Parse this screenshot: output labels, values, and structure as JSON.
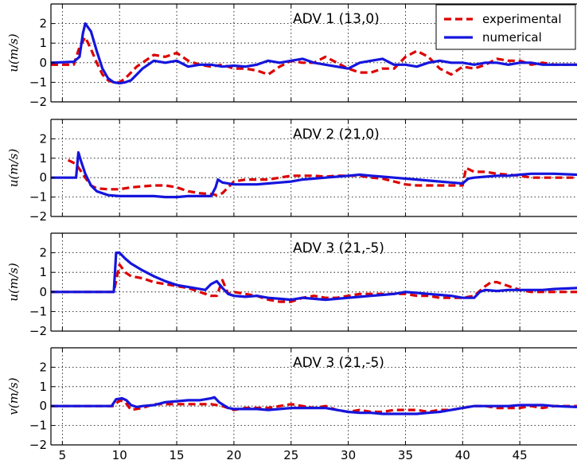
{
  "chart_data": [
    {
      "type": "line",
      "title": "ADV 1  (13,0)",
      "ylabel": "u(m/s)",
      "xlim": [
        4,
        50
      ],
      "ylim": [
        -2,
        3
      ],
      "xticks": [
        5,
        10,
        15,
        20,
        25,
        30,
        35,
        40,
        45
      ],
      "yticks": [
        -2,
        -1,
        0,
        1,
        2
      ],
      "grid": true,
      "legend": "top-right",
      "series": [
        {
          "name": "experimental",
          "color": "#dd0000",
          "style": "dashed",
          "x": [
            4,
            6,
            6.5,
            7,
            7.5,
            8,
            8.5,
            9,
            9.5,
            10,
            10.5,
            11,
            11.5,
            12,
            12.5,
            13,
            14,
            15,
            16,
            17,
            18,
            19,
            20,
            21,
            22,
            23,
            24,
            25,
            26,
            27,
            28,
            29,
            30,
            31,
            32,
            33,
            34,
            35,
            36,
            37,
            38,
            39,
            40,
            41,
            42,
            43,
            44,
            45,
            46,
            47,
            48,
            50
          ],
          "y": [
            -0.1,
            -0.1,
            0.8,
            1.3,
            0.7,
            0.0,
            -0.6,
            -0.9,
            -1.0,
            -1.0,
            -0.8,
            -0.5,
            -0.2,
            0.0,
            0.2,
            0.4,
            0.3,
            0.5,
            0.1,
            -0.1,
            -0.2,
            -0.1,
            -0.3,
            -0.3,
            -0.4,
            -0.6,
            -0.2,
            0.1,
            0.0,
            0.0,
            0.3,
            0.0,
            -0.3,
            -0.5,
            -0.5,
            -0.3,
            -0.3,
            0.3,
            0.6,
            0.3,
            -0.3,
            -0.6,
            -0.2,
            -0.3,
            -0.1,
            0.2,
            0.1,
            0.1,
            -0.1,
            0.0,
            -0.1,
            -0.1
          ]
        },
        {
          "name": "numerical",
          "color": "#1515dd",
          "style": "solid",
          "x": [
            4,
            6,
            6.5,
            6.8,
            7,
            7.5,
            8,
            8.5,
            9,
            9.5,
            10,
            10.5,
            11,
            11.5,
            12,
            12.5,
            13,
            14,
            15,
            16,
            17,
            18,
            19,
            20,
            21,
            22,
            23,
            24,
            25,
            26,
            27,
            28,
            29,
            30,
            31,
            32,
            33,
            34,
            35,
            36,
            37,
            38,
            39,
            40,
            41,
            42,
            43,
            44,
            45,
            46,
            47,
            48,
            50
          ],
          "y": [
            0.0,
            0.05,
            0.3,
            1.5,
            2.0,
            1.6,
            0.6,
            -0.3,
            -0.8,
            -1.0,
            -1.05,
            -1.0,
            -0.9,
            -0.6,
            -0.3,
            -0.1,
            0.1,
            0.0,
            0.1,
            -0.2,
            -0.1,
            -0.1,
            -0.2,
            -0.15,
            -0.2,
            -0.1,
            0.1,
            0.0,
            0.1,
            0.2,
            0.0,
            -0.1,
            -0.2,
            -0.3,
            0.0,
            0.1,
            0.2,
            -0.1,
            -0.1,
            -0.2,
            0.0,
            0.1,
            0.0,
            0.0,
            -0.1,
            0.0,
            0.0,
            -0.1,
            0.0,
            0.0,
            -0.1,
            -0.1,
            -0.1
          ]
        }
      ]
    },
    {
      "type": "line",
      "title": "ADV 2  (21,0)",
      "ylabel": "u(m/s)",
      "xlim": [
        4,
        50
      ],
      "ylim": [
        -2,
        3
      ],
      "xticks": [
        5,
        10,
        15,
        20,
        25,
        30,
        35,
        40,
        45
      ],
      "yticks": [
        -2,
        -1,
        0,
        1,
        2
      ],
      "grid": true,
      "series": [
        {
          "name": "experimental",
          "color": "#dd0000",
          "style": "dashed",
          "x": [
            5.5,
            6.2,
            7,
            7.5,
            8,
            9,
            10,
            11,
            12,
            13,
            14,
            15,
            16,
            17,
            18,
            18.5,
            19,
            20,
            21,
            22,
            23,
            24,
            25,
            26,
            27,
            28,
            29,
            30,
            31,
            32,
            33,
            34,
            35,
            36,
            37,
            38,
            39,
            40,
            40.3,
            41,
            42,
            43,
            44,
            45,
            46,
            47,
            48,
            50
          ],
          "y": [
            0.9,
            0.7,
            0.0,
            -0.4,
            -0.55,
            -0.6,
            -0.6,
            -0.5,
            -0.45,
            -0.4,
            -0.4,
            -0.5,
            -0.7,
            -0.8,
            -0.85,
            -0.9,
            -0.8,
            -0.2,
            -0.1,
            -0.1,
            -0.1,
            0.0,
            0.1,
            0.1,
            0.1,
            0.05,
            0.1,
            0.1,
            0.1,
            0.0,
            -0.05,
            -0.2,
            -0.35,
            -0.4,
            -0.4,
            -0.4,
            -0.4,
            -0.4,
            0.5,
            0.3,
            0.3,
            0.2,
            0.15,
            0.1,
            0.0,
            0.0,
            0.0,
            0.0
          ]
        },
        {
          "name": "numerical",
          "color": "#1515dd",
          "style": "solid",
          "x": [
            4,
            6.2,
            6.4,
            6.6,
            7,
            7.5,
            8,
            9,
            10,
            11,
            12,
            13,
            14,
            15,
            16,
            17,
            18,
            18.4,
            18.6,
            19,
            20,
            21,
            22,
            23,
            24,
            25,
            26,
            27,
            28,
            29,
            30,
            31,
            32,
            33,
            34,
            35,
            36,
            37,
            38,
            39,
            40,
            40.5,
            41,
            42,
            43,
            44,
            45,
            46,
            47,
            48,
            50
          ],
          "y": [
            0.0,
            0.0,
            1.3,
            0.9,
            0.2,
            -0.4,
            -0.7,
            -0.9,
            -0.95,
            -0.95,
            -0.95,
            -0.95,
            -1.0,
            -1.0,
            -0.95,
            -0.95,
            -0.95,
            -0.5,
            -0.1,
            -0.25,
            -0.35,
            -0.35,
            -0.35,
            -0.3,
            -0.25,
            -0.2,
            -0.1,
            -0.05,
            0.0,
            0.05,
            0.1,
            0.15,
            0.1,
            0.05,
            0.0,
            -0.05,
            -0.1,
            -0.15,
            -0.2,
            -0.25,
            -0.3,
            -0.05,
            0.0,
            0.05,
            0.1,
            0.1,
            0.15,
            0.2,
            0.2,
            0.2,
            0.15
          ]
        }
      ]
    },
    {
      "type": "line",
      "title": "ADV 3  (21,-5)",
      "ylabel": "u(m/s)",
      "xlim": [
        4,
        50
      ],
      "ylim": [
        -2,
        3
      ],
      "xticks": [
        5,
        10,
        15,
        20,
        25,
        30,
        35,
        40,
        45
      ],
      "yticks": [
        -2,
        -1,
        0,
        1,
        2
      ],
      "grid": true,
      "series": [
        {
          "name": "experimental",
          "color": "#dd0000",
          "style": "dashed",
          "x": [
            4,
            9.5,
            10,
            10.5,
            11,
            12,
            13,
            14,
            15,
            16,
            17,
            18,
            18.5,
            19,
            19.5,
            20,
            21,
            22,
            23,
            24,
            25,
            26,
            27,
            28,
            29,
            30,
            31,
            32,
            33,
            34,
            35,
            36,
            37,
            38,
            39,
            40,
            41,
            42,
            42.5,
            43,
            44,
            45,
            46,
            47,
            48,
            50
          ],
          "y": [
            0.0,
            0.0,
            1.4,
            1.0,
            0.8,
            0.7,
            0.5,
            0.4,
            0.3,
            0.2,
            0.0,
            -0.2,
            -0.2,
            0.6,
            -0.1,
            0.0,
            -0.1,
            -0.2,
            -0.4,
            -0.5,
            -0.5,
            -0.3,
            -0.2,
            -0.3,
            -0.3,
            -0.2,
            -0.1,
            -0.1,
            -0.1,
            -0.1,
            -0.1,
            -0.2,
            -0.2,
            -0.3,
            -0.3,
            -0.3,
            -0.2,
            0.3,
            0.5,
            0.5,
            0.3,
            0.1,
            0.0,
            0.0,
            0.0,
            0.0
          ]
        },
        {
          "name": "numerical",
          "color": "#1515dd",
          "style": "solid",
          "x": [
            4,
            9.5,
            9.7,
            10,
            10.5,
            11,
            12,
            13,
            14,
            15,
            16,
            17,
            17.5,
            18,
            18.5,
            19,
            19.5,
            20,
            21,
            22,
            23,
            24,
            25,
            26,
            27,
            28,
            29,
            30,
            31,
            32,
            33,
            34,
            35,
            36,
            37,
            38,
            39,
            40,
            41,
            41.5,
            42,
            43,
            44,
            45,
            46,
            47,
            48,
            50
          ],
          "y": [
            0.0,
            0.0,
            2.0,
            2.0,
            1.7,
            1.45,
            1.1,
            0.8,
            0.55,
            0.35,
            0.25,
            0.15,
            0.1,
            0.4,
            0.55,
            0.2,
            -0.1,
            -0.2,
            -0.25,
            -0.2,
            -0.3,
            -0.35,
            -0.4,
            -0.3,
            -0.35,
            -0.4,
            -0.35,
            -0.3,
            -0.25,
            -0.2,
            -0.15,
            -0.1,
            0.0,
            -0.05,
            -0.1,
            -0.15,
            -0.2,
            -0.3,
            -0.3,
            0.0,
            0.1,
            0.05,
            0.1,
            0.1,
            0.1,
            0.1,
            0.15,
            0.2
          ]
        }
      ]
    },
    {
      "type": "line",
      "title": "ADV 3  (21,-5)",
      "ylabel": "v(m/s)",
      "xlim": [
        4,
        50
      ],
      "ylim": [
        -2,
        3
      ],
      "xticks": [
        5,
        10,
        15,
        20,
        25,
        30,
        35,
        40,
        45
      ],
      "yticks": [
        -2,
        -1,
        0,
        1,
        2
      ],
      "grid": true,
      "series": [
        {
          "name": "experimental",
          "color": "#dd0000",
          "style": "dashed",
          "x": [
            4,
            9.5,
            10,
            10.5,
            11,
            12,
            13,
            14,
            15,
            16,
            17,
            18,
            19,
            20,
            21,
            22,
            23,
            24,
            25,
            26,
            27,
            28,
            29,
            30,
            31,
            32,
            33,
            34,
            35,
            36,
            37,
            38,
            39,
            40,
            41,
            42,
            43,
            44,
            45,
            46,
            47,
            48,
            50
          ],
          "y": [
            0.0,
            0.0,
            0.3,
            0.2,
            -0.2,
            -0.1,
            0.1,
            0.1,
            0.1,
            0.1,
            0.1,
            0.1,
            0.0,
            -0.2,
            -0.1,
            -0.1,
            -0.1,
            0.0,
            0.1,
            0.0,
            -0.1,
            0.0,
            -0.2,
            -0.3,
            -0.2,
            -0.3,
            -0.3,
            -0.2,
            -0.2,
            -0.2,
            -0.3,
            -0.2,
            -0.2,
            -0.1,
            0.0,
            0.0,
            -0.1,
            -0.1,
            -0.1,
            0.0,
            -0.1,
            0.0,
            0.0
          ]
        },
        {
          "name": "numerical",
          "color": "#1515dd",
          "style": "solid",
          "x": [
            4,
            9.3,
            9.7,
            10.2,
            10.6,
            11,
            11.5,
            12,
            13,
            14,
            15,
            16,
            17,
            18,
            18.3,
            18.7,
            19.5,
            20,
            21,
            22,
            23,
            24,
            25,
            26,
            27,
            28,
            29,
            30,
            31,
            32,
            33,
            34,
            35,
            36,
            37,
            38,
            39,
            40,
            41,
            42,
            43,
            44,
            45,
            46,
            47,
            48,
            50
          ],
          "y": [
            0.0,
            0.0,
            0.35,
            0.4,
            0.3,
            0.05,
            -0.05,
            0.0,
            0.05,
            0.2,
            0.25,
            0.3,
            0.3,
            0.4,
            0.45,
            0.2,
            -0.1,
            -0.15,
            -0.15,
            -0.15,
            -0.2,
            -0.15,
            -0.1,
            -0.1,
            -0.1,
            -0.1,
            -0.2,
            -0.3,
            -0.35,
            -0.35,
            -0.4,
            -0.4,
            -0.4,
            -0.4,
            -0.35,
            -0.3,
            -0.2,
            -0.1,
            0.0,
            0.0,
            0.0,
            0.0,
            0.05,
            0.05,
            0.05,
            0.0,
            -0.05
          ]
        }
      ]
    }
  ]
}
